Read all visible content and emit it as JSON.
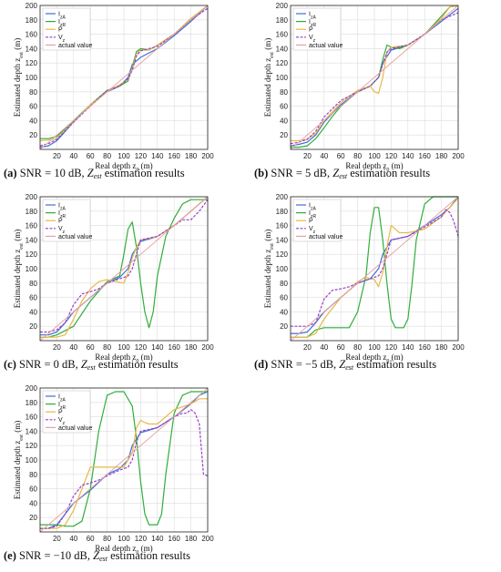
{
  "figure": {
    "xlabel": "Real depth z",
    "xlabel_sub": "0",
    "xlabel_unit": " (m)",
    "ylabel": "Estimated depth z",
    "ylabel_sub": "est",
    "ylabel_unit": " (m)",
    "caption_mid": " estimation results",
    "caption_z": "Z",
    "caption_z_sub": "est",
    "legend": [
      "I_zA",
      "I_zR",
      "P",
      "V_z",
      "actual value"
    ],
    "colors": {
      "I_zA": "#3b6fd4",
      "I_zR": "#2fae3a",
      "P": "#e7b84a",
      "V_z": "#9b3fc9",
      "actual value": "#e8a0a0"
    }
  },
  "panels": [
    {
      "label": "(a)",
      "caption": "SNR = 10 dB,"
    },
    {
      "label": "(b)",
      "caption": "SNR = 5 dB,"
    },
    {
      "label": "(c)",
      "caption": "SNR = 0 dB,"
    },
    {
      "label": "(d)",
      "caption": "SNR = −5 dB,"
    },
    {
      "label": "(e)",
      "caption": "SNR = −10 dB,"
    }
  ],
  "chart_data": [
    {
      "type": "line",
      "xlim": [
        0,
        200
      ],
      "ylim": [
        0,
        200
      ],
      "xticks": [
        20,
        40,
        60,
        80,
        100,
        120,
        140,
        160,
        180,
        200
      ],
      "yticks": [
        20,
        40,
        60,
        80,
        100,
        120,
        140,
        160,
        180,
        200
      ],
      "grid": true,
      "legend_position": "top-left",
      "series": [
        {
          "name": "I_zA",
          "x": [
            0,
            10,
            20,
            40,
            60,
            80,
            95,
            105,
            110,
            120,
            140,
            160,
            180,
            200
          ],
          "y": [
            3,
            5,
            12,
            38,
            62,
            80,
            88,
            100,
            118,
            128,
            140,
            158,
            178,
            200
          ]
        },
        {
          "name": "I_zR",
          "x": [
            0,
            10,
            20,
            40,
            60,
            80,
            95,
            105,
            110,
            115,
            120,
            130,
            140,
            160,
            180,
            200
          ],
          "y": [
            15,
            15,
            18,
            40,
            62,
            82,
            88,
            95,
            115,
            136,
            140,
            138,
            145,
            160,
            180,
            200
          ]
        },
        {
          "name": "P",
          "x": [
            0,
            10,
            20,
            40,
            60,
            80,
            95,
            105,
            110,
            115,
            120,
            130,
            140,
            160,
            180,
            200
          ],
          "y": [
            12,
            13,
            15,
            38,
            62,
            80,
            90,
            97,
            112,
            133,
            138,
            138,
            145,
            160,
            182,
            200
          ]
        },
        {
          "name": "V_z",
          "x": [
            0,
            10,
            20,
            40,
            60,
            80,
            95,
            105,
            110,
            115,
            120,
            140,
            160,
            180,
            200
          ],
          "y": [
            5,
            8,
            14,
            38,
            60,
            82,
            88,
            98,
            110,
            130,
            137,
            143,
            160,
            180,
            196
          ]
        },
        {
          "name": "actual value",
          "x": [
            0,
            200
          ],
          "y": [
            0,
            200
          ]
        }
      ]
    },
    {
      "type": "line",
      "xlim": [
        0,
        200
      ],
      "ylim": [
        0,
        200
      ],
      "xticks": [
        20,
        40,
        60,
        80,
        100,
        120,
        140,
        160,
        180,
        200
      ],
      "yticks": [
        20,
        40,
        60,
        80,
        100,
        120,
        140,
        160,
        180,
        200
      ],
      "grid": true,
      "legend_position": "top-left",
      "series": [
        {
          "name": "I_zA",
          "x": [
            0,
            10,
            20,
            30,
            40,
            60,
            80,
            95,
            105,
            110,
            120,
            140,
            160,
            180,
            200
          ],
          "y": [
            5,
            7,
            10,
            20,
            38,
            62,
            80,
            88,
            100,
            120,
            138,
            145,
            160,
            178,
            196
          ]
        },
        {
          "name": "I_zR",
          "x": [
            0,
            10,
            20,
            30,
            40,
            50,
            60,
            80,
            95,
            105,
            110,
            115,
            120,
            130,
            140,
            160,
            180,
            190,
            200
          ],
          "y": [
            3,
            3,
            5,
            15,
            30,
            46,
            60,
            80,
            88,
            100,
            125,
            145,
            142,
            140,
            145,
            160,
            185,
            198,
            200
          ]
        },
        {
          "name": "P",
          "x": [
            0,
            10,
            20,
            30,
            40,
            60,
            80,
            95,
            100,
            105,
            110,
            115,
            120,
            140,
            160,
            180,
            190,
            200
          ],
          "y": [
            12,
            12,
            14,
            22,
            40,
            65,
            82,
            88,
            80,
            78,
            100,
            135,
            142,
            145,
            160,
            182,
            198,
            200
          ]
        },
        {
          "name": "V_z",
          "x": [
            0,
            10,
            20,
            30,
            40,
            60,
            80,
            95,
            105,
            110,
            115,
            120,
            140,
            160,
            180,
            200
          ],
          "y": [
            8,
            10,
            14,
            25,
            45,
            68,
            80,
            88,
            100,
            118,
            135,
            140,
            145,
            160,
            180,
            190
          ]
        },
        {
          "name": "actual value",
          "x": [
            0,
            200
          ],
          "y": [
            0,
            200
          ]
        }
      ]
    },
    {
      "type": "line",
      "xlim": [
        0,
        200
      ],
      "ylim": [
        0,
        200
      ],
      "xticks": [
        20,
        40,
        60,
        80,
        100,
        120,
        140,
        160,
        180,
        200
      ],
      "yticks": [
        20,
        40,
        60,
        80,
        100,
        120,
        140,
        160,
        180,
        200
      ],
      "grid": true,
      "legend_position": "top-left",
      "series": [
        {
          "name": "I_zA",
          "x": [
            0,
            10,
            20,
            30,
            40,
            60,
            80,
            95,
            105,
            110,
            120,
            140,
            160,
            180,
            200
          ],
          "y": [
            8,
            8,
            12,
            25,
            40,
            60,
            80,
            88,
            100,
            120,
            138,
            145,
            160,
            180,
            200
          ]
        },
        {
          "name": "I_zR",
          "x": [
            0,
            10,
            20,
            40,
            60,
            80,
            95,
            100,
            105,
            110,
            115,
            120,
            125,
            130,
            135,
            140,
            150,
            160,
            170,
            180,
            200
          ],
          "y": [
            5,
            5,
            8,
            20,
            55,
            82,
            90,
            120,
            155,
            165,
            130,
            80,
            40,
            18,
            40,
            90,
            145,
            170,
            190,
            196,
            196
          ]
        },
        {
          "name": "P",
          "x": [
            0,
            10,
            20,
            30,
            40,
            50,
            60,
            70,
            80,
            90,
            100,
            105,
            110,
            115,
            120,
            140,
            160,
            180,
            200
          ],
          "y": [
            5,
            5,
            5,
            8,
            30,
            55,
            72,
            82,
            85,
            82,
            80,
            95,
            115,
            130,
            140,
            145,
            160,
            180,
            200
          ]
        },
        {
          "name": "V_z",
          "x": [
            0,
            10,
            20,
            30,
            40,
            50,
            60,
            70,
            80,
            95,
            105,
            110,
            115,
            120,
            140,
            160,
            170,
            180,
            190,
            200
          ],
          "y": [
            12,
            12,
            15,
            25,
            50,
            65,
            68,
            72,
            80,
            86,
            90,
            100,
            120,
            140,
            145,
            160,
            168,
            168,
            180,
            196
          ]
        },
        {
          "name": "actual value",
          "x": [
            0,
            200
          ],
          "y": [
            0,
            200
          ]
        }
      ]
    },
    {
      "type": "line",
      "xlim": [
        0,
        200
      ],
      "ylim": [
        0,
        200
      ],
      "xticks": [
        20,
        40,
        60,
        80,
        100,
        120,
        140,
        160,
        180,
        200
      ],
      "yticks": [
        20,
        40,
        60,
        80,
        100,
        120,
        140,
        160,
        180,
        200
      ],
      "grid": true,
      "legend_position": "top-left",
      "series": [
        {
          "name": "I_zA",
          "x": [
            0,
            10,
            20,
            30,
            40,
            60,
            80,
            95,
            105,
            110,
            120,
            140,
            160,
            180,
            190,
            200
          ],
          "y": [
            10,
            10,
            12,
            25,
            40,
            60,
            80,
            86,
            100,
            120,
            140,
            145,
            160,
            175,
            185,
            200
          ]
        },
        {
          "name": "I_zR",
          "x": [
            0,
            10,
            20,
            30,
            40,
            50,
            60,
            70,
            80,
            90,
            95,
            100,
            105,
            110,
            115,
            120,
            125,
            130,
            135,
            140,
            145,
            150,
            160,
            170,
            180,
            190,
            200
          ],
          "y": [
            5,
            5,
            5,
            15,
            18,
            18,
            18,
            18,
            40,
            90,
            150,
            185,
            185,
            140,
            80,
            30,
            18,
            18,
            18,
            30,
            80,
            140,
            190,
            200,
            200,
            200,
            200
          ]
        },
        {
          "name": "P",
          "x": [
            0,
            10,
            20,
            30,
            40,
            50,
            60,
            70,
            80,
            90,
            100,
            105,
            110,
            115,
            120,
            125,
            130,
            140,
            160,
            180,
            190,
            200
          ],
          "y": [
            5,
            5,
            5,
            10,
            30,
            45,
            60,
            70,
            82,
            88,
            85,
            75,
            95,
            130,
            160,
            155,
            150,
            150,
            155,
            172,
            185,
            198
          ]
        },
        {
          "name": "V_z",
          "x": [
            0,
            10,
            20,
            30,
            40,
            50,
            60,
            70,
            80,
            95,
            105,
            110,
            115,
            120,
            140,
            160,
            170,
            180,
            185,
            190,
            195,
            200
          ],
          "y": [
            20,
            20,
            20,
            25,
            58,
            70,
            72,
            75,
            80,
            86,
            90,
            100,
            120,
            140,
            145,
            158,
            165,
            172,
            182,
            178,
            165,
            145
          ]
        },
        {
          "name": "actual value",
          "x": [
            0,
            200
          ],
          "y": [
            0,
            200
          ]
        }
      ]
    },
    {
      "type": "line",
      "xlim": [
        0,
        200
      ],
      "ylim": [
        0,
        200
      ],
      "xticks": [
        20,
        40,
        60,
        80,
        100,
        120,
        140,
        160,
        180,
        200
      ],
      "yticks": [
        20,
        40,
        60,
        80,
        100,
        120,
        140,
        160,
        180,
        200
      ],
      "grid": true,
      "legend_position": "top-left",
      "series": [
        {
          "name": "I_zA",
          "x": [
            0,
            10,
            20,
            30,
            40,
            60,
            80,
            95,
            105,
            110,
            120,
            140,
            160,
            180,
            190,
            200
          ],
          "y": [
            5,
            5,
            10,
            25,
            40,
            58,
            80,
            88,
            100,
            120,
            138,
            145,
            160,
            178,
            190,
            195
          ]
        },
        {
          "name": "I_zR",
          "x": [
            0,
            10,
            20,
            30,
            40,
            50,
            60,
            70,
            80,
            90,
            100,
            110,
            115,
            120,
            125,
            130,
            135,
            140,
            145,
            150,
            160,
            170,
            180,
            190,
            200
          ],
          "y": [
            10,
            10,
            10,
            8,
            8,
            15,
            60,
            140,
            190,
            195,
            195,
            175,
            130,
            70,
            25,
            10,
            10,
            10,
            25,
            80,
            165,
            190,
            195,
            195,
            195
          ]
        },
        {
          "name": "P",
          "x": [
            0,
            10,
            20,
            30,
            40,
            50,
            60,
            70,
            80,
            90,
            100,
            110,
            115,
            120,
            125,
            130,
            140,
            160,
            180,
            190,
            200
          ],
          "y": [
            5,
            5,
            5,
            10,
            30,
            60,
            90,
            90,
            90,
            90,
            90,
            110,
            145,
            155,
            152,
            150,
            150,
            170,
            178,
            185,
            185
          ]
        },
        {
          "name": "V_z",
          "x": [
            0,
            10,
            20,
            30,
            40,
            50,
            60,
            70,
            80,
            95,
            105,
            110,
            115,
            120,
            140,
            160,
            170,
            175,
            180,
            185,
            190,
            195,
            200
          ],
          "y": [
            5,
            5,
            8,
            25,
            50,
            65,
            68,
            72,
            78,
            86,
            90,
            100,
            125,
            140,
            145,
            160,
            165,
            165,
            170,
            165,
            150,
            80,
            78
          ]
        },
        {
          "name": "actual value",
          "x": [
            0,
            200
          ],
          "y": [
            0,
            200
          ]
        }
      ]
    }
  ]
}
